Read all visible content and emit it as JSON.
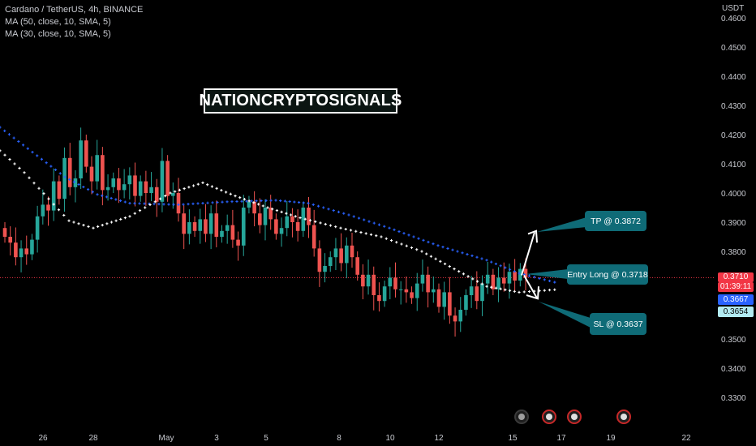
{
  "legend": {
    "line1": "Cardano / TetherUS, 4h, BINANCE",
    "line2": "MA (50, close, 10, SMA, 5)",
    "line3": "MA (30, close, 10, SMA, 5)"
  },
  "brand": "NATIONCRYPTOSIGNALS",
  "currency": "USDT",
  "callouts": {
    "tp": "TP @ 0.3872",
    "entry": "Entry Long @ 0.3718",
    "sl": "SL @ 0.3637"
  },
  "price_tags": {
    "current": "0.3710",
    "countdown": "01:39:11",
    "ma_blue": "0.3667",
    "ma_white": "0.3654"
  },
  "colors": {
    "up": "#26a69a",
    "down": "#ef5350",
    "ma_blue": "#2962ff",
    "ma_white": "#ffffff",
    "callout": "#0f6b77",
    "current_tag": "#f23645",
    "blue_tag": "#2962ff",
    "white_tag": "#b2ebf2"
  },
  "chart_data": {
    "type": "candlestick",
    "symbol": "Cardano / TetherUS",
    "timeframe": "4h",
    "exchange": "BINANCE",
    "y_ticks": [
      "0.4600",
      "0.4500",
      "0.4400",
      "0.4300",
      "0.4200",
      "0.4100",
      "0.4000",
      "0.3900",
      "0.3800",
      "0.3710",
      "0.3500",
      "0.3400",
      "0.3300"
    ],
    "x_ticks": [
      "26",
      "28",
      "May",
      "3",
      "5",
      "8",
      "10",
      "12",
      "15",
      "17",
      "19",
      "22"
    ],
    "ylim": [
      0.324,
      0.462
    ],
    "levels": {
      "tp": 0.3872,
      "entry": 0.3718,
      "sl": 0.3637,
      "current": 0.371
    },
    "candles_close_path": [
      0.385,
      0.383,
      0.378,
      0.381,
      0.379,
      0.384,
      0.392,
      0.396,
      0.394,
      0.404,
      0.398,
      0.412,
      0.402,
      0.405,
      0.418,
      0.409,
      0.404,
      0.413,
      0.401,
      0.402,
      0.405,
      0.401,
      0.403,
      0.406,
      0.399,
      0.404,
      0.4,
      0.402,
      0.397,
      0.411,
      0.399,
      0.4,
      0.393,
      0.386,
      0.39,
      0.387,
      0.391,
      0.386,
      0.393,
      0.385,
      0.387,
      0.389,
      0.384,
      0.382,
      0.395,
      0.397,
      0.393,
      0.389,
      0.395,
      0.391,
      0.386,
      0.388,
      0.392,
      0.39,
      0.387,
      0.395,
      0.389,
      0.381,
      0.373,
      0.375,
      0.378,
      0.381,
      0.376,
      0.382,
      0.378,
      0.372,
      0.368,
      0.372,
      0.365,
      0.363,
      0.368,
      0.371,
      0.367,
      0.367,
      0.366,
      0.364,
      0.369,
      0.372,
      0.366,
      0.367,
      0.361,
      0.366,
      0.358,
      0.356,
      0.36,
      0.365,
      0.368,
      0.363,
      0.369,
      0.372,
      0.367,
      0.371,
      0.369,
      0.373,
      0.37,
      0.374,
      0.371
    ],
    "series": [
      {
        "name": "MA (50, close, 10, SMA, 5)",
        "color": "#2962ff",
        "last": 0.3667
      },
      {
        "name": "MA (30, close, 10, SMA, 5)",
        "color": "#ffffff",
        "last": 0.3654
      }
    ]
  }
}
